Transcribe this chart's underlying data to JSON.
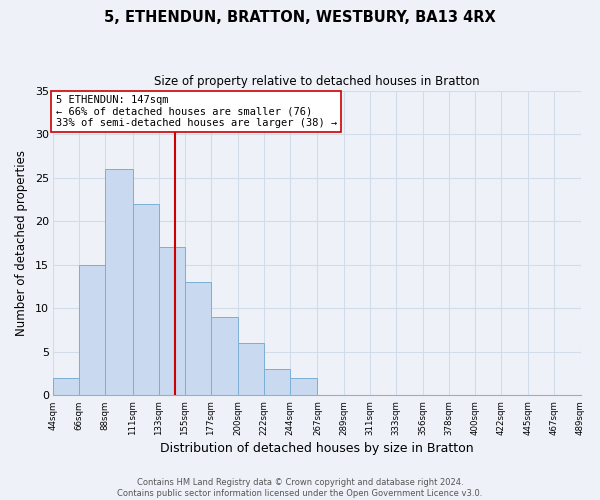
{
  "title": "5, ETHENDUN, BRATTON, WESTBURY, BA13 4RX",
  "subtitle": "Size of property relative to detached houses in Bratton",
  "xlabel": "Distribution of detached houses by size in Bratton",
  "ylabel": "Number of detached properties",
  "bar_left_edges": [
    44,
    66,
    88,
    111,
    133,
    155,
    177,
    200,
    222,
    244,
    267,
    289,
    311,
    333,
    356,
    378,
    400,
    422,
    445,
    467
  ],
  "bar_widths": [
    22,
    22,
    23,
    22,
    22,
    22,
    23,
    22,
    22,
    23,
    22,
    22,
    22,
    23,
    22,
    22,
    22,
    23,
    22,
    22
  ],
  "bar_heights": [
    2,
    15,
    26,
    22,
    17,
    13,
    9,
    6,
    3,
    2,
    0,
    0,
    0,
    0,
    0,
    0,
    0,
    0,
    0,
    0
  ],
  "bar_color": "#c8d9f0",
  "bar_edgecolor": "#7bafd4",
  "vline_x": 147,
  "vline_color": "#cc0000",
  "annotation_line1": "5 ETHENDUN: 147sqm",
  "annotation_line2": "← 66% of detached houses are smaller (76)",
  "annotation_line3": "33% of semi-detached houses are larger (38) →",
  "annotation_box_edgecolor": "#cc0000",
  "annotation_box_facecolor": "#ffffff",
  "ylim": [
    0,
    35
  ],
  "yticks": [
    0,
    5,
    10,
    15,
    20,
    25,
    30,
    35
  ],
  "xtick_labels": [
    "44sqm",
    "66sqm",
    "88sqm",
    "111sqm",
    "133sqm",
    "155sqm",
    "177sqm",
    "200sqm",
    "222sqm",
    "244sqm",
    "267sqm",
    "289sqm",
    "311sqm",
    "333sqm",
    "356sqm",
    "378sqm",
    "400sqm",
    "422sqm",
    "445sqm",
    "467sqm",
    "489sqm"
  ],
  "xtick_positions": [
    44,
    66,
    88,
    111,
    133,
    155,
    177,
    200,
    222,
    244,
    267,
    289,
    311,
    333,
    356,
    378,
    400,
    422,
    445,
    467,
    489
  ],
  "footer_text": "Contains HM Land Registry data © Crown copyright and database right 2024.\nContains public sector information licensed under the Open Government Licence v3.0.",
  "grid_color": "#d0dce8",
  "background_color": "#eef2f8"
}
